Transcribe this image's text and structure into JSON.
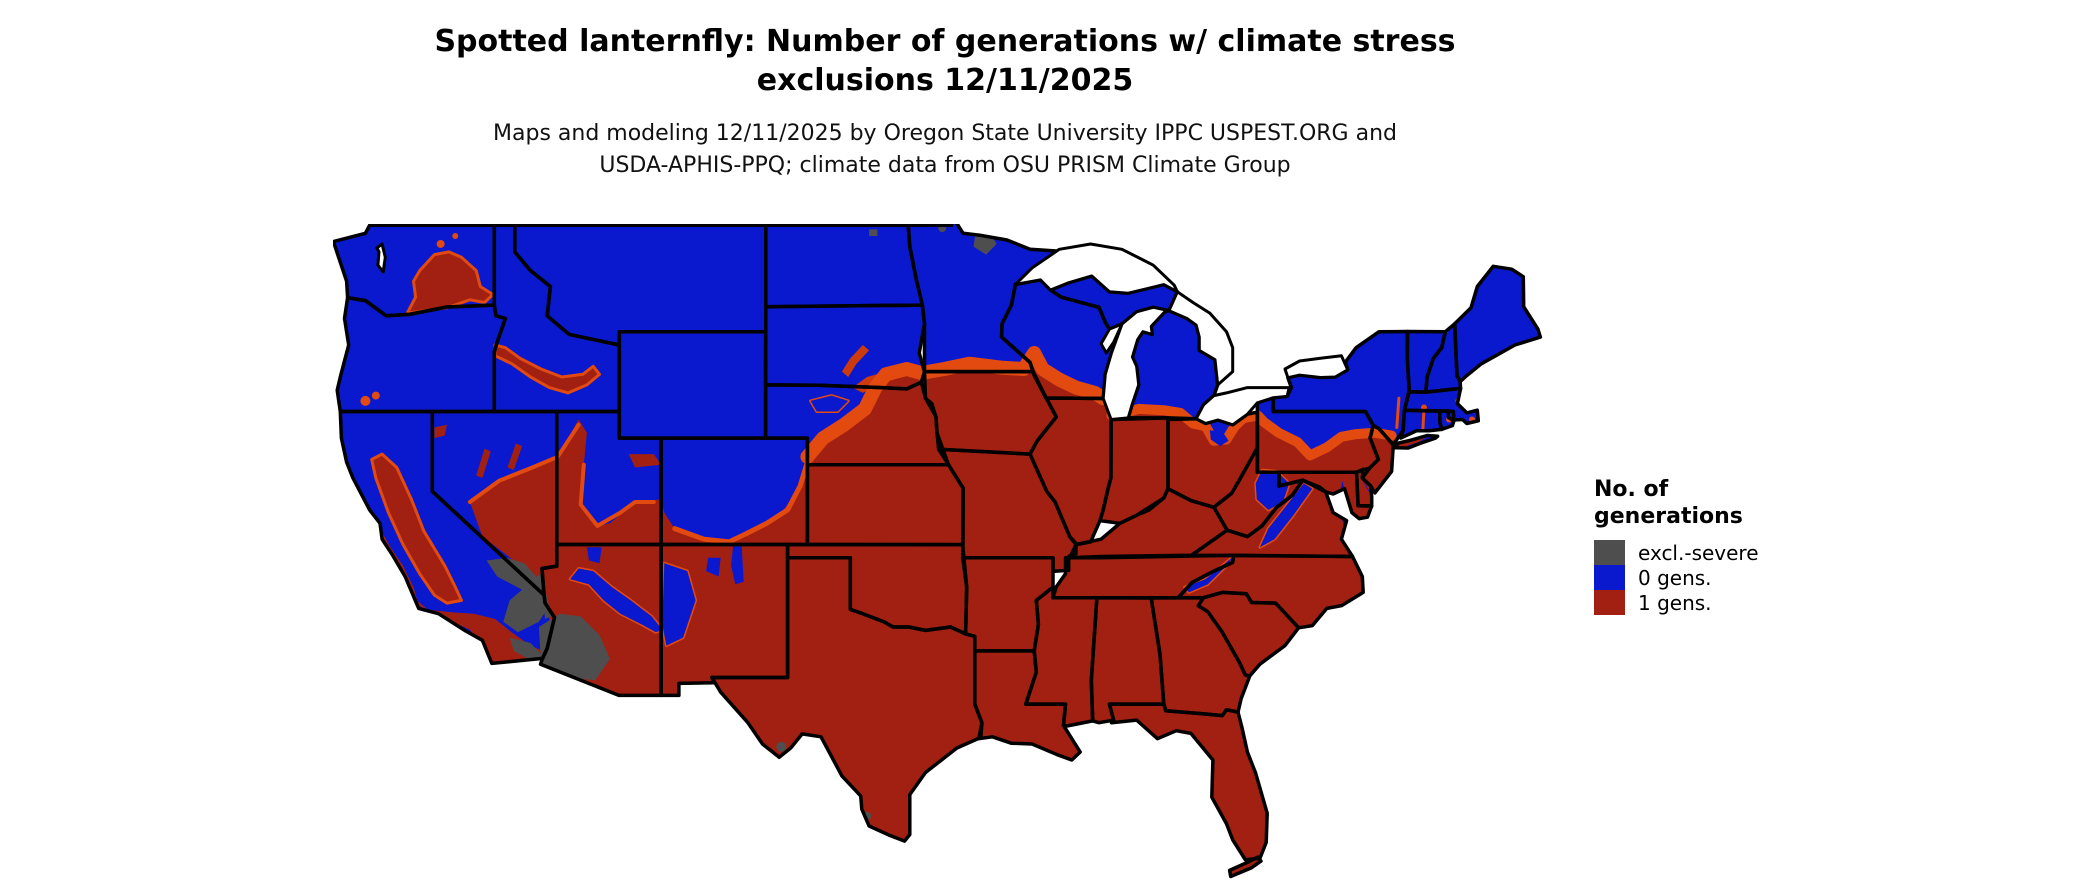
{
  "title": {
    "line1": "Spotted lanternfly: Number of generations w/ climate stress",
    "line2": "exclusions 12/11/2025"
  },
  "subtitle": {
    "line1": "Maps and modeling 12/11/2025 by Oregon State University IPPC USPEST.ORG and",
    "line2": "USDA-APHIS-PPQ; climate data from OSU PRISM Climate Group"
  },
  "legend": {
    "title_line1": "No. of",
    "title_line2": "generations",
    "items": [
      {
        "label": "excl.-severe",
        "color": "#4f4e4e"
      },
      {
        "label": "0 gens.",
        "color": "#0a19cd"
      },
      {
        "label": "1 gens.",
        "color": "#a22012"
      }
    ]
  },
  "colors": {
    "background": "#ffffff",
    "zero_generations_blue": "#0a19cd",
    "one_generation_red": "#a22012",
    "excluded_severe_gray": "#4f4e4e",
    "transition_orange": "#e24a10",
    "transition_orange_deep": "#cc3a0e",
    "border_black": "#000000",
    "water_white": "#ffffff"
  },
  "map": {
    "date": "12/11/2025",
    "region": "contiguous United States",
    "type": "raster choropleth with state borders",
    "classes": [
      {
        "label": "excl.-severe",
        "areas": "southwestern Arizona desert, southeastern California and southern Nevada deserts, spots in northern Minnesota and northern North Dakota, far-south and Big Bend Texas"
      },
      {
        "label": "0 gens.",
        "areas": "Pacific Northwest, northern Rockies, Montana, Wyoming, Dakotas, Minnesota, Wisconsin, Michigan, New York, New England, Sierra Nevada, high plateaus of Utah/Colorado, Mogollon Rim, Appalachian ridges"
      },
      {
        "label": "1 gens.",
        "areas": "California Central Valley and coast, southwestern lowlands, southern Plains, Texas, Midwest south of about 43N, Southeast, Florida, Mid-Atlantic"
      }
    ],
    "notes": "bright orange band marks the transition between 0 gens. and 1 gens.; Great Lakes and ocean are white"
  }
}
